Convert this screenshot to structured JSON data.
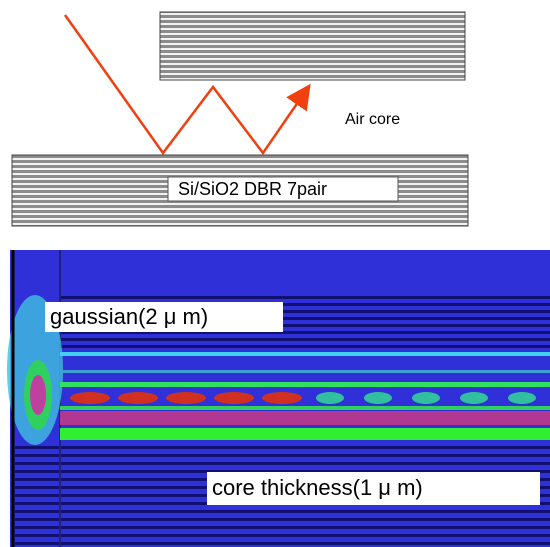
{
  "labels": {
    "air_core": "Air core",
    "dbr": "Si/SiO2 DBR 7pair",
    "gaussian": "gaussian(2 μ m)",
    "core_thickness": "core thickness(1 μ m)"
  }
}
